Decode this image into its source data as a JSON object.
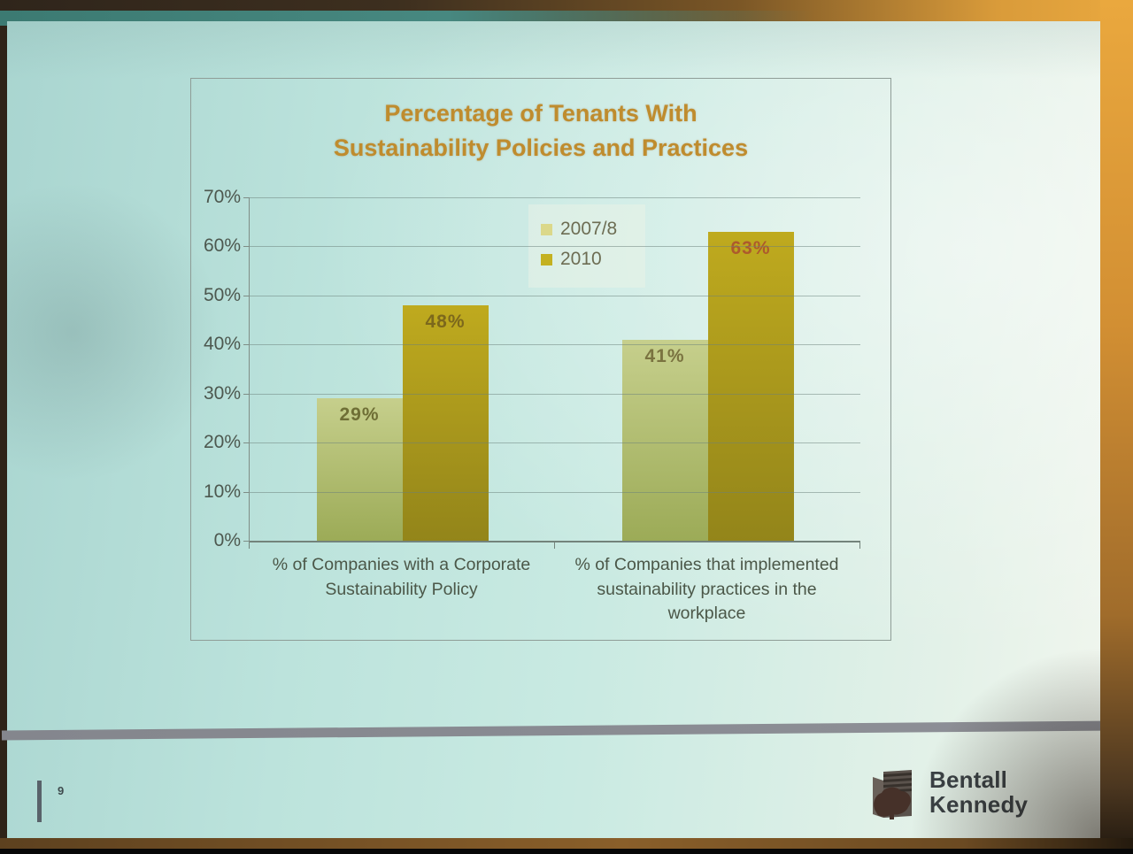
{
  "slide": {
    "title_line1": "Percentage of Tenants With",
    "title_line2": "Sustainability Policies and Practices",
    "page_number": "9",
    "logo": {
      "line1": "Bentall",
      "line2": "Kennedy"
    }
  },
  "chart_data": {
    "type": "bar",
    "title": "Percentage of Tenants With Sustainability Policies and Practices",
    "categories": [
      "% of Companies with a Corporate Sustainability Policy",
      "% of Companies that implemented sustainability practices in the workplace"
    ],
    "series": [
      {
        "name": "2007/8",
        "values": [
          29,
          41
        ],
        "color_top": "#c6cf8c",
        "color_bottom": "#9cab57",
        "legend_color": "#dbd88a"
      },
      {
        "name": "2010",
        "values": [
          48,
          63
        ],
        "color_top": "#bfaa1e",
        "color_bottom": "#93851a",
        "legend_color": "#c4b121"
      }
    ],
    "value_labels": [
      [
        "29%",
        "41%"
      ],
      [
        "48%",
        "63%"
      ]
    ],
    "value_label_colors": [
      [
        "#6e6e35",
        "#7a7340"
      ],
      [
        "#7c681c",
        "#ad5a2c"
      ]
    ],
    "ylim": [
      0,
      70
    ],
    "yticks": [
      "70%",
      "60%",
      "50%",
      "40%",
      "30%",
      "20%",
      "10%",
      "0%"
    ],
    "grid": true,
    "legend_position": "top-center",
    "colors": {
      "title": "#bf8c2e",
      "axis_text": "#4d584f",
      "category_text": "#4b5748"
    }
  }
}
